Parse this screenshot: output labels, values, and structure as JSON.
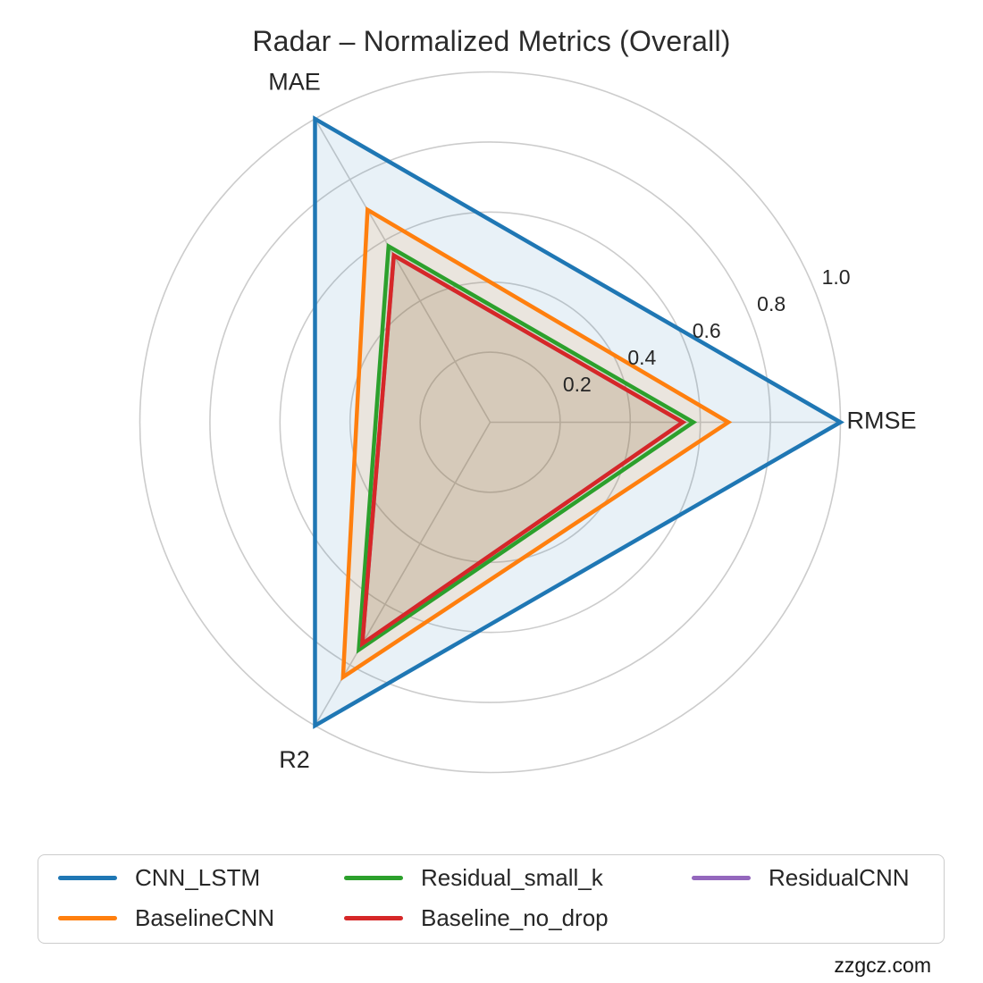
{
  "page": {
    "background": "#ffffff"
  },
  "watermark": {
    "text": "zzgcz.com"
  },
  "chart_data": {
    "type": "radar",
    "title": "Radar – Normalized Metrics (Overall)",
    "categories": [
      "MAE",
      "RMSE",
      "R2"
    ],
    "angles_deg": [
      120,
      0,
      240
    ],
    "r_ticks": [
      0.2,
      0.4,
      0.6,
      0.8,
      1.0
    ],
    "r_max": 1.0,
    "grid": true,
    "grid_color": "#cccccc",
    "text_color": "#262626",
    "tick_label_angle_deg": 22.5,
    "series": [
      {
        "name": "CNN_LSTM",
        "color": "#1f77b4",
        "values": [
          1.0,
          1.0,
          1.0
        ],
        "fill_opacity": 0.1
      },
      {
        "name": "BaselineCNN",
        "color": "#ff7f0e",
        "values": [
          0.7,
          0.68,
          0.84
        ],
        "fill_opacity": 0.1
      },
      {
        "name": "Residual_small_k",
        "color": "#2ca02c",
        "values": [
          0.58,
          0.58,
          0.75
        ],
        "fill_opacity": 0.1
      },
      {
        "name": "Baseline_no_drop",
        "color": "#d62728",
        "values": [
          0.55,
          0.55,
          0.73
        ],
        "fill_opacity": 0.1
      },
      {
        "name": "ResidualCNN",
        "color": "#9467bd",
        "values": [
          0.55,
          0.55,
          0.73
        ],
        "fill_opacity": 0,
        "note": "coincides with Baseline_no_drop; hidden beneath it in the plot"
      }
    ],
    "draw_order": [
      0,
      1,
      2,
      4,
      3
    ],
    "legend": {
      "position": "bottom",
      "columns": [
        [
          0,
          1
        ],
        [
          2,
          3
        ],
        [
          4
        ]
      ]
    }
  }
}
